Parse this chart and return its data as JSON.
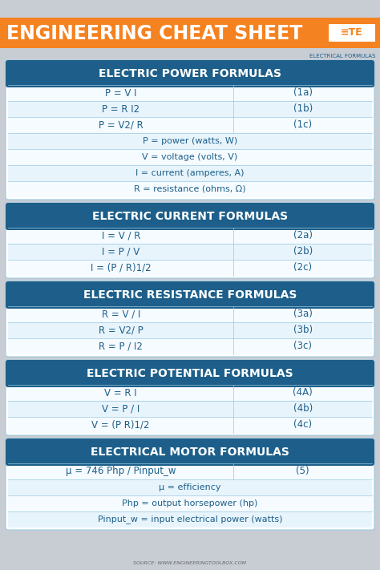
{
  "title": "ENGINEERING CHEAT SHEET",
  "subtitle": "ELECTRICAL FORMULAS",
  "bg_color": "#c8cdd4",
  "orange_color": "#f58220",
  "header_bg": "#1d5f8a",
  "header_text": "#ffffff",
  "row_bg_light": "#e8f4fc",
  "row_bg_white": "#f5fbff",
  "cell_text": "#1d5f8a",
  "divider_color": "#9ac8e0",
  "te_box_color": "#ffffff",
  "source_text": "SOURCE: WWW.ENGINEERINGTOOLBOX.COM",
  "sections": [
    {
      "title": "ELECTRIC POWER FORMULAS",
      "rows": [
        {
          "formula": "P = V I",
          "label": "(1a)",
          "full_width": false
        },
        {
          "formula": "P = R I2",
          "label": "(1b)",
          "full_width": false
        },
        {
          "formula": "P = V2/ R",
          "label": "(1c)",
          "full_width": false
        },
        {
          "formula": "P = power (watts, W)",
          "label": "",
          "full_width": true
        },
        {
          "formula": "V = voltage (volts, V)",
          "label": "",
          "full_width": true
        },
        {
          "formula": "I = current (amperes, A)",
          "label": "",
          "full_width": true
        },
        {
          "formula": "R = resistance (ohms, Ω)",
          "label": "",
          "full_width": true
        }
      ]
    },
    {
      "title": "ELECTRIC CURRENT FORMULAS",
      "rows": [
        {
          "formula": "I = V / R",
          "label": "(2a)",
          "full_width": false
        },
        {
          "formula": "I = P / V",
          "label": "(2b)",
          "full_width": false
        },
        {
          "formula": "I = (P / R)1/2",
          "label": "(2c)",
          "full_width": false
        }
      ]
    },
    {
      "title": "ELECTRIC RESISTANCE FORMULAS",
      "rows": [
        {
          "formula": "R = V / I",
          "label": "(3a)",
          "full_width": false
        },
        {
          "formula": "R = V2/ P",
          "label": "(3b)",
          "full_width": false
        },
        {
          "formula": "R = P / I2",
          "label": "(3c)",
          "full_width": false
        }
      ]
    },
    {
      "title": "ELECTRIC POTENTIAL FORMULAS",
      "rows": [
        {
          "formula": "V = R I",
          "label": "(4A)",
          "full_width": false
        },
        {
          "formula": "V = P / I",
          "label": "(4b)",
          "full_width": false
        },
        {
          "formula": "V = (P R)1/2",
          "label": "(4c)",
          "full_width": false
        }
      ]
    },
    {
      "title": "ELECTRICAL MOTOR FORMULAS",
      "rows": [
        {
          "formula": "μ = 746 Php / Pinput_w",
          "label": "(5)",
          "full_width": false
        },
        {
          "formula": "μ = efficiency",
          "label": "",
          "full_width": true
        },
        {
          "formula": "Php = output horsepower (hp)",
          "label": "",
          "full_width": true
        },
        {
          "formula": "Pinput_w = input electrical power (watts)",
          "label": "",
          "full_width": true
        }
      ]
    }
  ]
}
